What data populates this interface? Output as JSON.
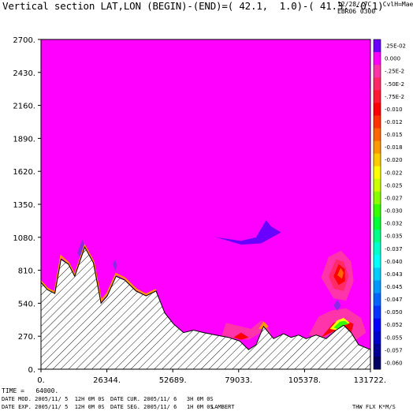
{
  "header": {
    "title": "Vertical section LAT,LON (BEGIN)-(END)=( 42.1,  1.0)-( 41.3, -0.1)",
    "right_line1": "12/28//7C   CvlH=Mae",
    "right_line2": "EBR06 0300"
  },
  "footer": {
    "time": "TIME =   64000.",
    "date_mod": "DATE MOD. 2005/11/ 5  12H 0M 0S",
    "date_cur": "DATE CUR. 2005/11/ 6   3H 0M 0S",
    "date_exp": "DATE EXP. 2005/11/ 5  12H 0M 0S",
    "date_seg": "DATE SEG. 2005/11/ 6   1H 0M 0S",
    "projection": "LAMBERT",
    "field": "THW FLX K*M/S"
  },
  "chart_data": {
    "type": "heatmap",
    "xlim": [
      0,
      131722
    ],
    "ylim": [
      0,
      2700
    ],
    "x_ticks": [
      "0.",
      "26344.",
      "52689.",
      "79033.",
      "105378.",
      "131722."
    ],
    "y_ticks": [
      "0.",
      "270.",
      "540.",
      "810.",
      "1080.",
      "1350.",
      "1620.",
      "1890.",
      "2160.",
      "2430.",
      "2700."
    ],
    "background_color": "#ff00ff",
    "colorbar": [
      {
        "label": ".25E-02",
        "color": "#6a00ff"
      },
      {
        "label": "0.000",
        "color": "#ff00ff"
      },
      {
        "label": "-.25E-2",
        "color": "#ff33aa"
      },
      {
        "label": "-.50E-2",
        "color": "#ff2a66"
      },
      {
        "label": "-.75E-2",
        "color": "#ff1a33"
      },
      {
        "label": "-0.010",
        "color": "#ff0000"
      },
      {
        "label": "-0.012",
        "color": "#ff3300"
      },
      {
        "label": "-0.015",
        "color": "#ff6600"
      },
      {
        "label": "-0.018",
        "color": "#ff9900"
      },
      {
        "label": "-0.020",
        "color": "#ffcc00"
      },
      {
        "label": "-0.022",
        "color": "#ffff00"
      },
      {
        "label": "-0.025",
        "color": "#ccff00"
      },
      {
        "label": "-0.027",
        "color": "#88ff00"
      },
      {
        "label": "-0.030",
        "color": "#33ff00"
      },
      {
        "label": "-0.032",
        "color": "#00ff33"
      },
      {
        "label": "-0.035",
        "color": "#00ff88"
      },
      {
        "label": "-0.037",
        "color": "#00ffcc"
      },
      {
        "label": "-0.040",
        "color": "#00ffff"
      },
      {
        "label": "-0.043",
        "color": "#00ccff"
      },
      {
        "label": "-0.045",
        "color": "#0099ff"
      },
      {
        "label": "-0.047",
        "color": "#0066ff"
      },
      {
        "label": "-0.050",
        "color": "#0033ff"
      },
      {
        "label": "-0.052",
        "color": "#0000ff"
      },
      {
        "label": "-0.055",
        "color": "#0000cc"
      },
      {
        "label": "-0.057",
        "color": "#000099"
      },
      {
        "label": "-0.060",
        "color": "#000066"
      }
    ],
    "terrain": [
      [
        0,
        710
      ],
      [
        2600,
        650
      ],
      [
        5500,
        620
      ],
      [
        8000,
        900
      ],
      [
        11000,
        860
      ],
      [
        13500,
        760
      ],
      [
        17500,
        1000
      ],
      [
        21000,
        870
      ],
      [
        24000,
        540
      ],
      [
        26500,
        600
      ],
      [
        30000,
        760
      ],
      [
        33500,
        730
      ],
      [
        38000,
        640
      ],
      [
        42000,
        600
      ],
      [
        46000,
        640
      ],
      [
        49500,
        460
      ],
      [
        53000,
        370
      ],
      [
        57000,
        300
      ],
      [
        61000,
        320
      ],
      [
        65000,
        300
      ],
      [
        70000,
        280
      ],
      [
        75000,
        260
      ],
      [
        79500,
        230
      ],
      [
        83000,
        160
      ],
      [
        86000,
        200
      ],
      [
        89000,
        350
      ],
      [
        93000,
        250
      ],
      [
        97000,
        290
      ],
      [
        100000,
        260
      ],
      [
        103000,
        280
      ],
      [
        106000,
        250
      ],
      [
        110000,
        280
      ],
      [
        114000,
        250
      ],
      [
        118000,
        320
      ],
      [
        121000,
        360
      ],
      [
        124000,
        300
      ],
      [
        127000,
        200
      ],
      [
        131722,
        160
      ]
    ],
    "features": [
      {
        "kind": "rim",
        "color": "#ff9900",
        "points": [
          [
            0,
            720
          ],
          [
            2600,
            660
          ],
          [
            5500,
            630
          ],
          [
            8000,
            925
          ],
          [
            11000,
            870
          ],
          [
            13500,
            770
          ],
          [
            17500,
            1010
          ],
          [
            21000,
            880
          ],
          [
            24000,
            560
          ],
          [
            26500,
            620
          ],
          [
            30000,
            780
          ],
          [
            33500,
            745
          ],
          [
            38000,
            655
          ],
          [
            42000,
            612
          ],
          [
            46000,
            652
          ]
        ]
      },
      {
        "kind": "blob",
        "color": "#ff33aa",
        "points": [
          [
            112000,
            750
          ],
          [
            115000,
            920
          ],
          [
            120000,
            970
          ],
          [
            124000,
            880
          ],
          [
            125000,
            720
          ],
          [
            122000,
            560
          ],
          [
            117000,
            580
          ]
        ]
      },
      {
        "kind": "blob",
        "color": "#ff2a66",
        "points": [
          [
            115000,
            760
          ],
          [
            118000,
            900
          ],
          [
            121000,
            880
          ],
          [
            123000,
            760
          ],
          [
            121000,
            640
          ],
          [
            117000,
            660
          ]
        ]
      },
      {
        "kind": "blob",
        "color": "#ff0000",
        "points": [
          [
            117000,
            760
          ],
          [
            119000,
            860
          ],
          [
            121500,
            820
          ],
          [
            121500,
            720
          ],
          [
            119000,
            690
          ]
        ]
      },
      {
        "kind": "blob",
        "color": "#ff6600",
        "points": [
          [
            118500,
            770
          ],
          [
            119800,
            830
          ],
          [
            121000,
            790
          ],
          [
            120300,
            740
          ]
        ]
      },
      {
        "kind": "blob",
        "color": "#ff33aa",
        "points": [
          [
            72000,
            260
          ],
          [
            74000,
            380
          ],
          [
            78000,
            360
          ],
          [
            84000,
            330
          ],
          [
            88000,
            400
          ],
          [
            90000,
            380
          ],
          [
            92000,
            290
          ],
          [
            88000,
            300
          ],
          [
            83000,
            240
          ],
          [
            79000,
            250
          ]
        ]
      },
      {
        "kind": "blob",
        "color": "#ff0000",
        "points": [
          [
            77000,
            260
          ],
          [
            80000,
            300
          ],
          [
            83000,
            260
          ],
          [
            80000,
            240
          ]
        ]
      },
      {
        "kind": "blob",
        "color": "#ff9900",
        "points": [
          [
            87000,
            330
          ],
          [
            89000,
            390
          ],
          [
            91000,
            350
          ],
          [
            89500,
            330
          ]
        ]
      },
      {
        "kind": "blob",
        "color": "#ff33aa",
        "points": [
          [
            107000,
            280
          ],
          [
            111000,
            430
          ],
          [
            116000,
            480
          ],
          [
            122000,
            500
          ],
          [
            128000,
            420
          ],
          [
            130000,
            300
          ],
          [
            126000,
            240
          ],
          [
            121000,
            360
          ],
          [
            118000,
            320
          ],
          [
            113000,
            250
          ]
        ]
      },
      {
        "kind": "blob",
        "color": "#ff0000",
        "points": [
          [
            112000,
            260
          ],
          [
            117000,
            380
          ],
          [
            121000,
            410
          ],
          [
            125000,
            370
          ],
          [
            124000,
            300
          ],
          [
            121000,
            360
          ],
          [
            118000,
            320
          ]
        ]
      },
      {
        "kind": "blob",
        "color": "#ffff00",
        "points": [
          [
            115500,
            330
          ],
          [
            118500,
            400
          ],
          [
            121000,
            420
          ],
          [
            123500,
            380
          ],
          [
            121000,
            360
          ],
          [
            118000,
            320
          ]
        ]
      },
      {
        "kind": "blob",
        "color": "#33ff00",
        "points": [
          [
            117000,
            340
          ],
          [
            119500,
            390
          ],
          [
            121500,
            395
          ],
          [
            123000,
            370
          ],
          [
            121000,
            360
          ],
          [
            118500,
            330
          ]
        ]
      },
      {
        "kind": "blob",
        "color": "#6a00ff",
        "points": [
          [
            70000,
            1080
          ],
          [
            80000,
            1050
          ],
          [
            86000,
            1080
          ],
          [
            90000,
            1220
          ],
          [
            92000,
            1170
          ],
          [
            96000,
            1120
          ],
          [
            88000,
            1030
          ],
          [
            80000,
            1020
          ]
        ]
      },
      {
        "kind": "blob",
        "color": "#8a2be2",
        "points": [
          [
            117000,
            520
          ],
          [
            118500,
            570
          ],
          [
            120000,
            520
          ],
          [
            118500,
            480
          ]
        ]
      },
      {
        "kind": "blob",
        "color": "#8a2be2",
        "points": [
          [
            14500,
            950
          ],
          [
            16500,
            1060
          ],
          [
            18500,
            960
          ],
          [
            16500,
            890
          ]
        ]
      },
      {
        "kind": "blob",
        "color": "#8a2be2",
        "points": [
          [
            28800,
            860
          ],
          [
            29600,
            900
          ],
          [
            30400,
            850
          ],
          [
            29600,
            800
          ]
        ]
      }
    ]
  }
}
